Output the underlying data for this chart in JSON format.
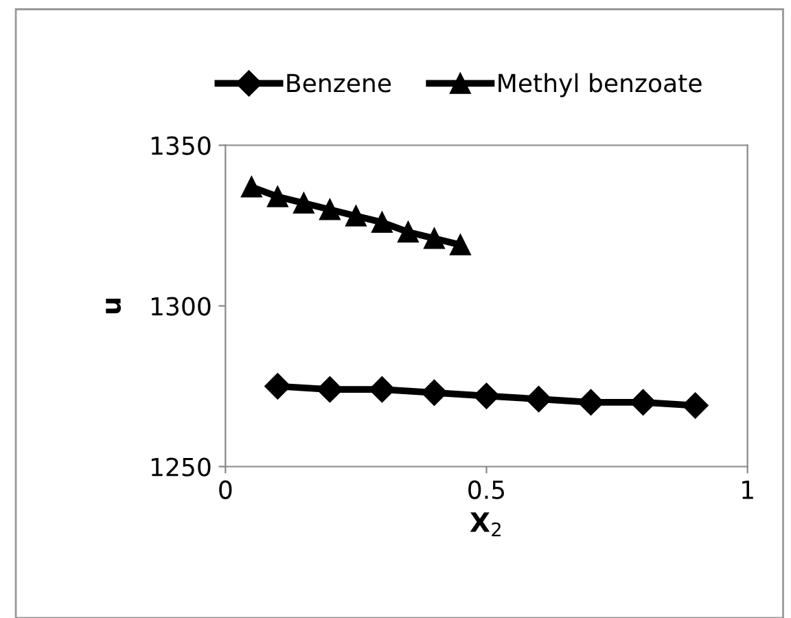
{
  "chart_data": {
    "type": "line",
    "xlabel": "X$_{2}$",
    "ylabel": "u",
    "xlim": [
      0,
      1
    ],
    "xticks": [
      0,
      0.5,
      1
    ],
    "ylim": [
      1250,
      1350
    ],
    "yticks": [
      1250,
      1300,
      1350
    ],
    "grid": false,
    "legend": "top",
    "line_style": "solid",
    "series": [
      {
        "name": "Benzene",
        "color": "#000000",
        "marker": "diamond",
        "x": [
          0.1,
          0.2,
          0.3,
          0.4,
          0.5,
          0.6,
          0.7,
          0.8,
          0.9
        ],
        "values": [
          1275,
          1274,
          1274,
          1273,
          1272,
          1271,
          1270,
          1270,
          1269
        ]
      },
      {
        "name": "Methyl benzoate",
        "color": "#000000",
        "marker": "triangle",
        "x": [
          0.05,
          0.1,
          0.15,
          0.2,
          0.25,
          0.3,
          0.35,
          0.4,
          0.45
        ],
        "values": [
          1337,
          1334,
          1332,
          1330,
          1328,
          1326,
          1323,
          1321,
          1319
        ]
      }
    ]
  }
}
